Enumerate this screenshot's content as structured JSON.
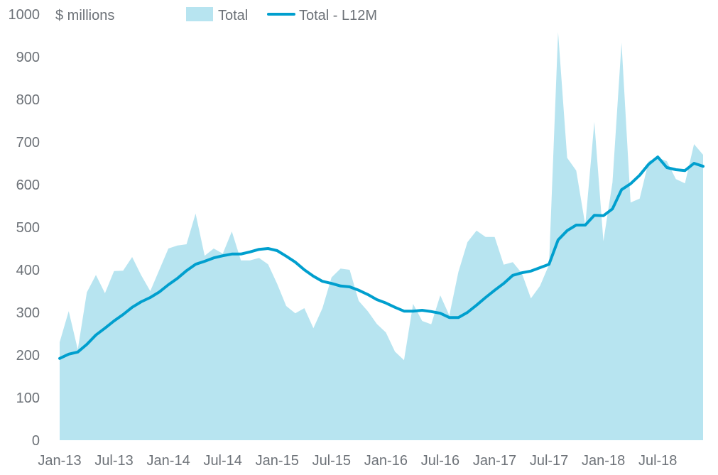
{
  "chart_data": {
    "type": "area",
    "title": "",
    "ylabel": "$ millions",
    "xlabel": "",
    "ylim": [
      0,
      1000
    ],
    "yticks": [
      0,
      100,
      200,
      300,
      400,
      500,
      600,
      700,
      800,
      900,
      1000
    ],
    "grid": false,
    "legend_position": "top",
    "colors": {
      "area": "#b7e4f0",
      "line": "#009fce",
      "text": "#6d7278"
    },
    "x_tick_labels": [
      "Jan-13",
      "Jul-13",
      "Jan-14",
      "Jul-14",
      "Jan-15",
      "Jul-15",
      "Jan-16",
      "Jul-16",
      "Jan-17",
      "Jul-17",
      "Jan-18",
      "Jul-18"
    ],
    "x_tick_every": 6,
    "start_month": "Jan-13",
    "series": [
      {
        "name": "Total",
        "type": "area",
        "values": [
          230,
          303,
          213,
          347,
          388,
          345,
          397,
          398,
          430,
          387,
          350,
          400,
          450,
          457,
          460,
          532,
          433,
          450,
          438,
          490,
          422,
          422,
          428,
          413,
          367,
          315,
          298,
          310,
          263,
          310,
          382,
          403,
          400,
          327,
          303,
          273,
          253,
          208,
          188,
          320,
          280,
          272,
          340,
          293,
          395,
          465,
          492,
          477,
          477,
          412,
          418,
          392,
          333,
          362,
          412,
          958,
          663,
          633,
          505,
          747,
          467,
          605,
          933,
          558,
          567,
          655,
          663,
          655,
          613,
          603,
          695,
          670
        ]
      },
      {
        "name": "Total - L12M",
        "type": "line",
        "values": [
          192,
          202,
          207,
          225,
          247,
          263,
          280,
          295,
          312,
          325,
          335,
          348,
          365,
          380,
          398,
          413,
          420,
          428,
          433,
          437,
          437,
          442,
          448,
          450,
          445,
          432,
          418,
          400,
          385,
          373,
          368,
          362,
          360,
          352,
          342,
          330,
          322,
          312,
          303,
          303,
          305,
          302,
          298,
          288,
          288,
          300,
          317,
          335,
          352,
          368,
          387,
          393,
          397,
          405,
          413,
          470,
          492,
          505,
          505,
          528,
          527,
          543,
          588,
          602,
          622,
          648,
          665,
          640,
          635,
          633,
          650,
          643
        ]
      }
    ]
  }
}
